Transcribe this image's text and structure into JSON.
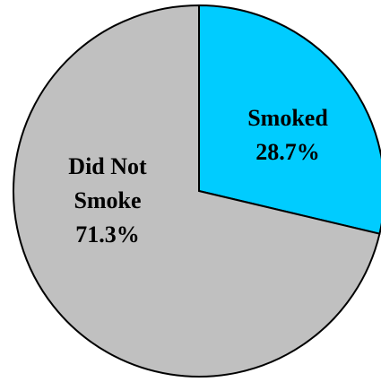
{
  "chart_data": {
    "type": "pie",
    "slices": [
      {
        "label_lines": [
          "Smoked"
        ],
        "value": 28.7,
        "value_text": "28.7%",
        "color": "#00CCFF"
      },
      {
        "label_lines": [
          "Did Not",
          "Smoke"
        ],
        "value": 71.3,
        "value_text": "71.3%",
        "color": "#C0C0C0"
      }
    ],
    "start_angle_deg": 0,
    "direction": "clockwise",
    "outline_color": "#000000",
    "legend": "none"
  }
}
